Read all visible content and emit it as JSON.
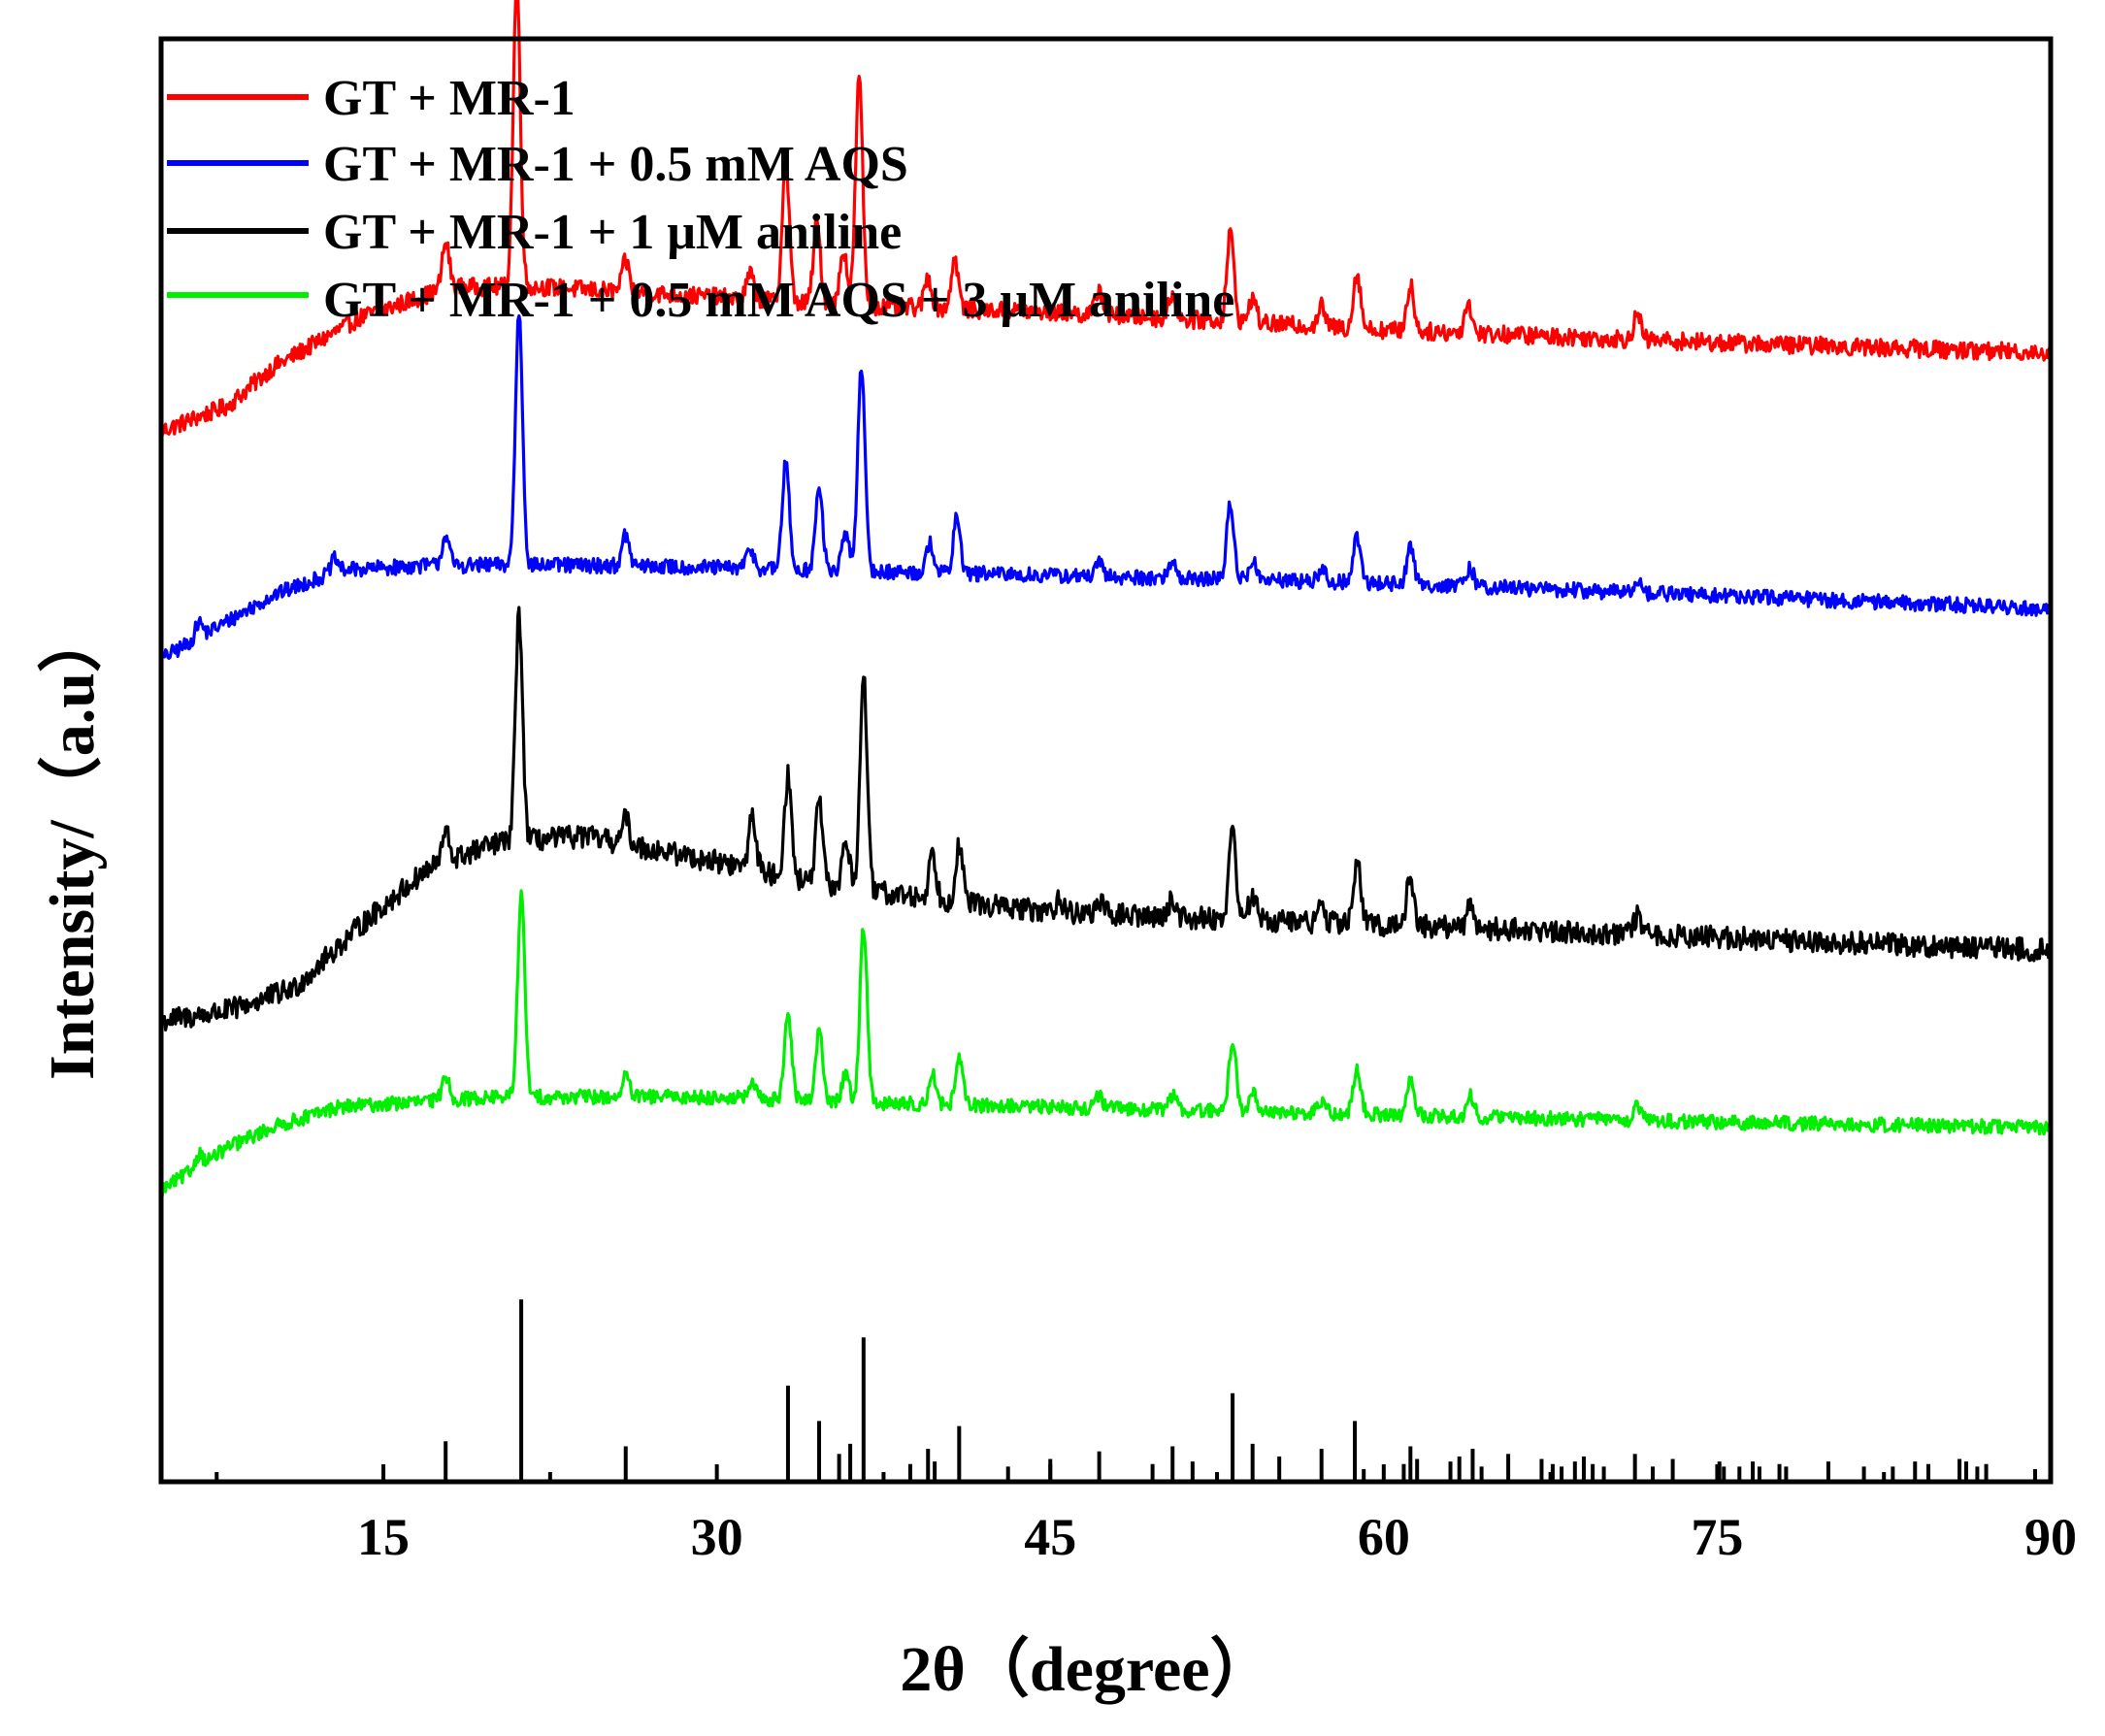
{
  "chart_data": {
    "type": "line",
    "title": "",
    "xlabel": "2θ（degree）",
    "ylabel": "Intensity/（a.u）",
    "xlim": [
      5,
      90
    ],
    "ylim": [
      -1.1,
      4.6
    ],
    "x_ticks": [
      15,
      30,
      45,
      60,
      75,
      90
    ],
    "x_tick_labels": [
      "15",
      "30",
      "45",
      "60",
      "75",
      "90"
    ],
    "x_minor_ticks": [
      7.5,
      22.5,
      37.5,
      52.5,
      67.5,
      82.5
    ],
    "y_ticks_shown": false,
    "grid": false,
    "legend_position": "top-left",
    "series": [
      {
        "name": "GT + MR-1",
        "color": "#ff0000",
        "offset": 3.0,
        "noise": 0.035,
        "baseline": [
          [
            5,
            0.05
          ],
          [
            8,
            0.15
          ],
          [
            10,
            0.3
          ],
          [
            14,
            0.5
          ],
          [
            18,
            0.62
          ],
          [
            22,
            0.62
          ],
          [
            30,
            0.58
          ],
          [
            35,
            0.55
          ],
          [
            45,
            0.52
          ],
          [
            60,
            0.45
          ],
          [
            75,
            0.4
          ],
          [
            90,
            0.36
          ]
        ],
        "peaks": [
          [
            17.8,
            0.18
          ],
          [
            21.0,
            1.2
          ],
          [
            25.9,
            0.12
          ],
          [
            31.5,
            0.1
          ],
          [
            33.1,
            0.55
          ],
          [
            34.5,
            0.32
          ],
          [
            35.7,
            0.22
          ],
          [
            36.4,
            0.9
          ],
          [
            39.5,
            0.12
          ],
          [
            40.7,
            0.2
          ],
          [
            47.2,
            0.1
          ],
          [
            50.5,
            0.1
          ],
          [
            53.1,
            0.35
          ],
          [
            54.1,
            0.1
          ],
          [
            57.2,
            0.08
          ],
          [
            58.8,
            0.22
          ],
          [
            61.2,
            0.18
          ],
          [
            63.8,
            0.12
          ],
          [
            71.4,
            0.1
          ]
        ]
      },
      {
        "name": "GT + MR-1 + 0.5 mM AQS",
        "color": "#0000ff",
        "offset": 2.0,
        "noise": 0.03,
        "baseline": [
          [
            5,
            0.15
          ],
          [
            8,
            0.3
          ],
          [
            10,
            0.4
          ],
          [
            13,
            0.5
          ],
          [
            17,
            0.52
          ],
          [
            25,
            0.52
          ],
          [
            35,
            0.5
          ],
          [
            45,
            0.48
          ],
          [
            60,
            0.45
          ],
          [
            75,
            0.4
          ],
          [
            90,
            0.35
          ]
        ],
        "peaks": [
          [
            6.7,
            0.06
          ],
          [
            12.8,
            0.05
          ],
          [
            17.8,
            0.12
          ],
          [
            21.1,
            1.0
          ],
          [
            25.9,
            0.12
          ],
          [
            31.5,
            0.08
          ],
          [
            33.1,
            0.42
          ],
          [
            34.6,
            0.32
          ],
          [
            35.8,
            0.15
          ],
          [
            36.5,
            0.82
          ],
          [
            39.6,
            0.12
          ],
          [
            40.8,
            0.22
          ],
          [
            47.2,
            0.05
          ],
          [
            50.5,
            0.07
          ],
          [
            53.1,
            0.3
          ],
          [
            54.1,
            0.08
          ],
          [
            57.2,
            0.05
          ],
          [
            58.8,
            0.18
          ],
          [
            61.2,
            0.15
          ],
          [
            63.9,
            0.07
          ],
          [
            71.4,
            0.05
          ]
        ]
      },
      {
        "name": "GT + MR-1 + 1 μM aniline",
        "color": "#000000",
        "offset": 0.7,
        "noise": 0.045,
        "baseline": [
          [
            5,
            0.02
          ],
          [
            8,
            0.06
          ],
          [
            11,
            0.15
          ],
          [
            14,
            0.4
          ],
          [
            17,
            0.62
          ],
          [
            20,
            0.72
          ],
          [
            24,
            0.75
          ],
          [
            30,
            0.65
          ],
          [
            35,
            0.55
          ],
          [
            45,
            0.45
          ],
          [
            60,
            0.4
          ],
          [
            75,
            0.35
          ],
          [
            90,
            0.3
          ]
        ],
        "peaks": [
          [
            17.8,
            0.12
          ],
          [
            21.1,
            0.9
          ],
          [
            25.9,
            0.1
          ],
          [
            31.6,
            0.22
          ],
          [
            33.2,
            0.4
          ],
          [
            34.6,
            0.32
          ],
          [
            35.8,
            0.2
          ],
          [
            36.6,
            0.85
          ],
          [
            39.7,
            0.18
          ],
          [
            40.9,
            0.22
          ],
          [
            45.4,
            0.06
          ],
          [
            47.2,
            0.05
          ],
          [
            50.5,
            0.07
          ],
          [
            53.2,
            0.35
          ],
          [
            54.1,
            0.1
          ],
          [
            57.2,
            0.06
          ],
          [
            58.8,
            0.25
          ],
          [
            61.2,
            0.2
          ],
          [
            63.9,
            0.1
          ],
          [
            71.4,
            0.07
          ]
        ]
      },
      {
        "name": "GT + MR-1 + 0.5 mM AQS + 3 μM aniline",
        "color": "#00ee00",
        "offset": 0.0,
        "noise": 0.028,
        "baseline": [
          [
            5,
            0.05
          ],
          [
            8,
            0.22
          ],
          [
            10,
            0.3
          ],
          [
            13,
            0.38
          ],
          [
            20,
            0.42
          ],
          [
            30,
            0.42
          ],
          [
            35,
            0.4
          ],
          [
            45,
            0.38
          ],
          [
            60,
            0.35
          ],
          [
            75,
            0.32
          ],
          [
            90,
            0.3
          ]
        ],
        "peaks": [
          [
            6.7,
            0.05
          ],
          [
            17.8,
            0.1
          ],
          [
            21.2,
            0.8
          ],
          [
            25.9,
            0.08
          ],
          [
            31.6,
            0.06
          ],
          [
            33.2,
            0.35
          ],
          [
            34.6,
            0.28
          ],
          [
            35.8,
            0.12
          ],
          [
            36.6,
            0.7
          ],
          [
            39.7,
            0.12
          ],
          [
            40.9,
            0.18
          ],
          [
            47.2,
            0.05
          ],
          [
            50.5,
            0.06
          ],
          [
            53.2,
            0.28
          ],
          [
            54.1,
            0.08
          ],
          [
            57.2,
            0.05
          ],
          [
            58.8,
            0.18
          ],
          [
            61.2,
            0.15
          ],
          [
            63.9,
            0.08
          ],
          [
            71.4,
            0.06
          ]
        ]
      }
    ],
    "reference_pattern": {
      "name": "reference",
      "color": "#000000",
      "peaks": [
        [
          17.8,
          0.16
        ],
        [
          21.2,
          0.72
        ],
        [
          25.9,
          0.14
        ],
        [
          33.2,
          0.38
        ],
        [
          34.6,
          0.24
        ],
        [
          35.5,
          0.11
        ],
        [
          36.0,
          0.15
        ],
        [
          36.6,
          0.57
        ],
        [
          38.7,
          0.07
        ],
        [
          39.5,
          0.13
        ],
        [
          39.8,
          0.08
        ],
        [
          40.9,
          0.22
        ],
        [
          43.1,
          0.06
        ],
        [
          45.0,
          0.09
        ],
        [
          47.2,
          0.12
        ],
        [
          49.6,
          0.07
        ],
        [
          50.5,
          0.14
        ],
        [
          51.4,
          0.08
        ],
        [
          53.2,
          0.35
        ],
        [
          54.1,
          0.15
        ],
        [
          55.3,
          0.1
        ],
        [
          57.2,
          0.13
        ],
        [
          58.7,
          0.24
        ],
        [
          59.1,
          0.05
        ],
        [
          60.9,
          0.07
        ],
        [
          61.2,
          0.14
        ],
        [
          61.5,
          0.09
        ],
        [
          63.0,
          0.08
        ],
        [
          63.4,
          0.1
        ],
        [
          64.0,
          0.13
        ],
        [
          64.4,
          0.06
        ],
        [
          65.6,
          0.11
        ],
        [
          67.1,
          0.09
        ],
        [
          67.6,
          0.07
        ],
        [
          68.0,
          0.06
        ],
        [
          68.6,
          0.08
        ],
        [
          69.0,
          0.1
        ],
        [
          69.4,
          0.07
        ],
        [
          69.9,
          0.06
        ],
        [
          71.3,
          0.11
        ],
        [
          72.1,
          0.06
        ],
        [
          73.0,
          0.09
        ],
        [
          75.1,
          0.08
        ],
        [
          75.3,
          0.06
        ],
        [
          76.0,
          0.06
        ],
        [
          76.6,
          0.08
        ],
        [
          76.9,
          0.06
        ],
        [
          77.8,
          0.07
        ],
        [
          78.1,
          0.06
        ],
        [
          80.0,
          0.08
        ],
        [
          81.6,
          0.06
        ],
        [
          82.9,
          0.06
        ],
        [
          83.9,
          0.08
        ],
        [
          84.5,
          0.07
        ],
        [
          85.9,
          0.09
        ],
        [
          86.2,
          0.08
        ],
        [
          86.7,
          0.06
        ],
        [
          87.1,
          0.07
        ],
        [
          89.3,
          0.05
        ]
      ]
    }
  }
}
